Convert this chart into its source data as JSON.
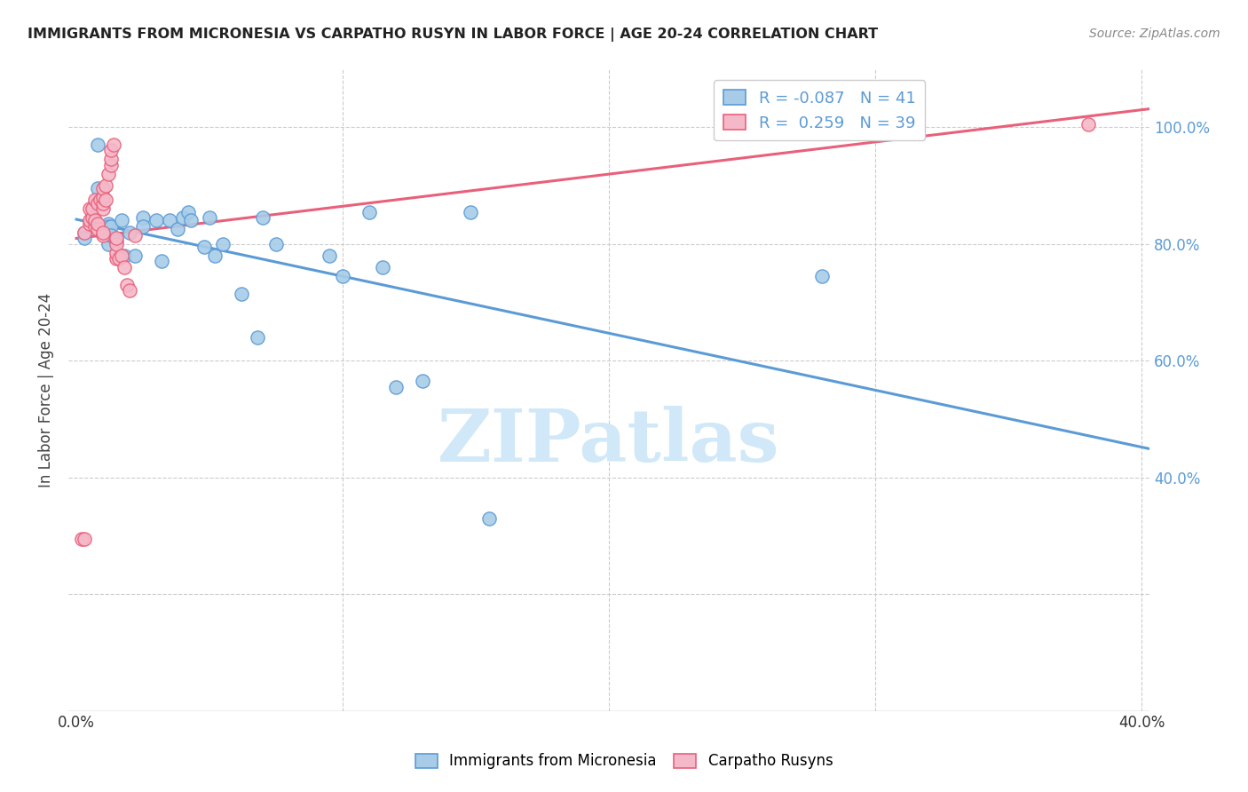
{
  "title": "IMMIGRANTS FROM MICRONESIA VS CARPATHO RUSYN IN LABOR FORCE | AGE 20-24 CORRELATION CHART",
  "source": "Source: ZipAtlas.com",
  "ylabel": "In Labor Force | Age 20-24",
  "xlim": [
    -0.003,
    0.403
  ],
  "ylim": [
    0.0,
    1.1
  ],
  "blue_color": "#a8cce8",
  "pink_color": "#f5b8c8",
  "blue_edge_color": "#5b9bd5",
  "pink_edge_color": "#e8607a",
  "blue_line_color": "#5b9bd5",
  "pink_line_color": "#e8607a",
  "grid_color": "#cccccc",
  "watermark_color": "#d0e8f8",
  "legend_R_blue": "-0.087",
  "legend_N_blue": "41",
  "legend_R_pink": "0.259",
  "legend_N_pink": "39",
  "blue_scatter_x": [
    0.003,
    0.003,
    0.008,
    0.008,
    0.012,
    0.012,
    0.012,
    0.013,
    0.013,
    0.013,
    0.015,
    0.017,
    0.018,
    0.02,
    0.022,
    0.025,
    0.025,
    0.03,
    0.032,
    0.035,
    0.038,
    0.04,
    0.042,
    0.043,
    0.048,
    0.05,
    0.052,
    0.055,
    0.062,
    0.068,
    0.07,
    0.075,
    0.095,
    0.1,
    0.11,
    0.115,
    0.12,
    0.13,
    0.148,
    0.155,
    0.28
  ],
  "blue_scatter_y": [
    0.82,
    0.81,
    0.97,
    0.895,
    0.835,
    0.83,
    0.8,
    0.815,
    0.83,
    0.815,
    0.805,
    0.84,
    0.78,
    0.82,
    0.78,
    0.845,
    0.83,
    0.84,
    0.77,
    0.84,
    0.825,
    0.845,
    0.855,
    0.84,
    0.795,
    0.845,
    0.78,
    0.8,
    0.715,
    0.64,
    0.845,
    0.8,
    0.78,
    0.745,
    0.855,
    0.76,
    0.555,
    0.565,
    0.855,
    0.33,
    0.745
  ],
  "pink_scatter_x": [
    0.002,
    0.003,
    0.003,
    0.005,
    0.005,
    0.005,
    0.006,
    0.006,
    0.007,
    0.007,
    0.007,
    0.008,
    0.008,
    0.008,
    0.009,
    0.01,
    0.01,
    0.01,
    0.01,
    0.01,
    0.01,
    0.011,
    0.011,
    0.012,
    0.013,
    0.013,
    0.013,
    0.014,
    0.015,
    0.015,
    0.015,
    0.015,
    0.016,
    0.017,
    0.018,
    0.019,
    0.02,
    0.022,
    0.38
  ],
  "pink_scatter_y": [
    0.295,
    0.295,
    0.82,
    0.835,
    0.84,
    0.86,
    0.845,
    0.86,
    0.83,
    0.84,
    0.875,
    0.825,
    0.835,
    0.87,
    0.875,
    0.815,
    0.82,
    0.86,
    0.87,
    0.88,
    0.895,
    0.875,
    0.9,
    0.92,
    0.935,
    0.945,
    0.96,
    0.97,
    0.775,
    0.785,
    0.8,
    0.81,
    0.775,
    0.78,
    0.76,
    0.73,
    0.72,
    0.815,
    1.005
  ]
}
